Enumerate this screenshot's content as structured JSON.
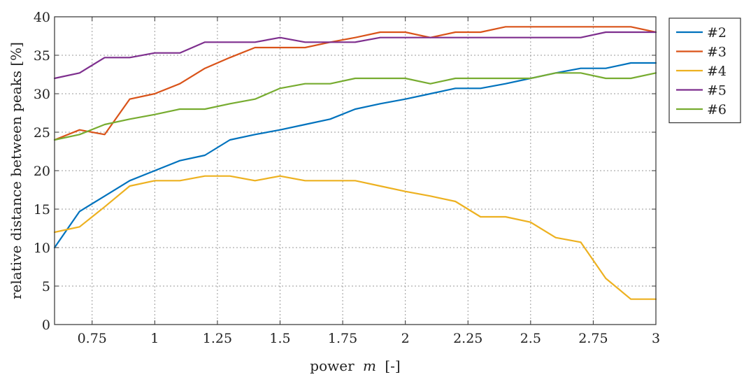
{
  "chart_data": {
    "type": "line",
    "xlabel_main": "power",
    "xlabel_symbol": "m",
    "xlabel_unit": "[-]",
    "ylabel": "relative distance between peaks [%]",
    "xlim": [
      0.6,
      3
    ],
    "ylim": [
      0,
      40
    ],
    "grid": true,
    "legend_position": "outside-right",
    "x_ticks": [
      0.75,
      1,
      1.25,
      1.5,
      1.75,
      2,
      2.25,
      2.5,
      2.75,
      3
    ],
    "x_tick_labels": [
      "0.75",
      "1",
      "1.25",
      "1.5",
      "1.75",
      "2",
      "2.25",
      "2.5",
      "2.75",
      "3"
    ],
    "y_ticks": [
      0,
      5,
      10,
      15,
      20,
      25,
      30,
      35,
      40
    ],
    "y_tick_labels": [
      "0",
      "5",
      "10",
      "15",
      "20",
      "25",
      "30",
      "35",
      "40"
    ],
    "x": [
      0.6,
      0.7,
      0.8,
      0.9,
      1.0,
      1.1,
      1.2,
      1.3,
      1.4,
      1.5,
      1.6,
      1.7,
      1.8,
      1.9,
      2.0,
      2.1,
      2.2,
      2.3,
      2.4,
      2.5,
      2.6,
      2.7,
      2.8,
      2.9,
      3.0
    ],
    "series": [
      {
        "name": "#2",
        "color": "#0072BD",
        "values": [
          10.0,
          14.7,
          16.7,
          18.7,
          20.0,
          21.3,
          22.0,
          24.0,
          24.7,
          25.3,
          26.0,
          26.7,
          28.0,
          28.7,
          29.3,
          30.0,
          30.7,
          30.7,
          31.3,
          32.0,
          32.7,
          33.3,
          33.3,
          34.0,
          34.0
        ]
      },
      {
        "name": "#3",
        "color": "#D95319",
        "values": [
          24.0,
          25.3,
          24.7,
          29.3,
          30.0,
          31.3,
          33.3,
          34.7,
          36.0,
          36.0,
          36.0,
          36.7,
          37.3,
          38.0,
          38.0,
          37.3,
          38.0,
          38.0,
          38.7,
          38.7,
          38.7,
          38.7,
          38.7,
          38.7,
          38.0
        ]
      },
      {
        "name": "#4",
        "color": "#EDB120",
        "values": [
          12.0,
          12.7,
          15.3,
          18.0,
          18.7,
          18.7,
          19.3,
          19.3,
          18.7,
          19.3,
          18.7,
          18.7,
          18.7,
          18.0,
          17.3,
          16.7,
          16.0,
          14.0,
          14.0,
          13.3,
          11.3,
          10.7,
          6.0,
          3.3,
          3.3
        ]
      },
      {
        "name": "#5",
        "color": "#7E2F8E",
        "values": [
          32.0,
          32.7,
          34.7,
          34.7,
          35.3,
          35.3,
          36.7,
          36.7,
          36.7,
          37.3,
          36.7,
          36.7,
          36.7,
          37.3,
          37.3,
          37.3,
          37.3,
          37.3,
          37.3,
          37.3,
          37.3,
          37.3,
          38.0,
          38.0,
          38.0
        ]
      },
      {
        "name": "#6",
        "color": "#77AC30",
        "values": [
          24.0,
          24.7,
          26.0,
          26.7,
          27.3,
          28.0,
          28.0,
          28.7,
          29.3,
          30.7,
          31.3,
          31.3,
          32.0,
          32.0,
          32.0,
          31.3,
          32.0,
          32.0,
          32.0,
          32.0,
          32.7,
          32.7,
          32.0,
          32.0,
          32.7
        ]
      }
    ]
  }
}
